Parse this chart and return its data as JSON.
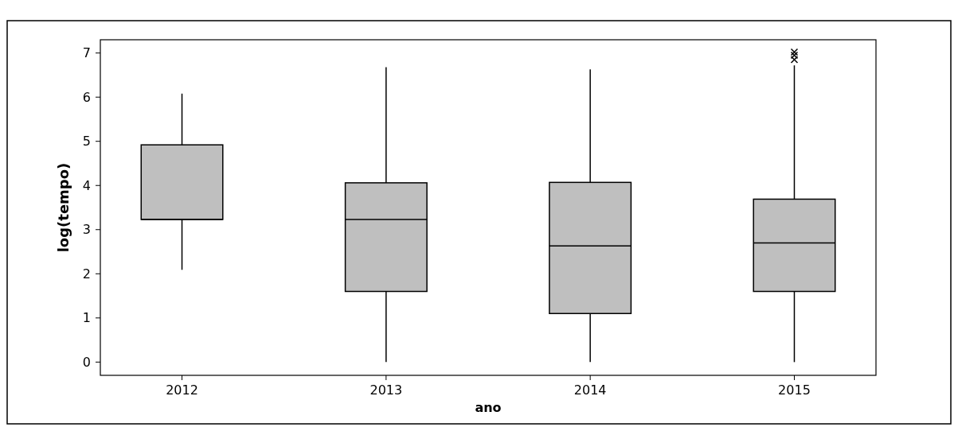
{
  "chart_data": {
    "type": "box",
    "xlabel": "ano",
    "ylabel": "log(tempo)",
    "categories": [
      "2012",
      "2013",
      "2014",
      "2015"
    ],
    "boxes": [
      {
        "low": 2.09,
        "q1": 3.23,
        "median": 3.23,
        "q3": 4.92,
        "high": 6.08
      },
      {
        "low": 0,
        "q1": 1.6,
        "median": 3.23,
        "q3": 4.06,
        "high": 6.68
      },
      {
        "low": 0,
        "q1": 1.1,
        "median": 2.63,
        "q3": 4.07,
        "high": 6.63
      },
      {
        "low": 0,
        "q1": 1.6,
        "median": 2.7,
        "q3": 3.69,
        "high": 6.72,
        "outliers": [
          6.85,
          6.95,
          7.02
        ]
      }
    ],
    "color": "#bfbfbf",
    "ylim": [
      -0.3,
      7.3
    ],
    "yticks": [
      0,
      1,
      2,
      3,
      4,
      5,
      6,
      7
    ],
    "grid": false,
    "marker": "cross"
  }
}
